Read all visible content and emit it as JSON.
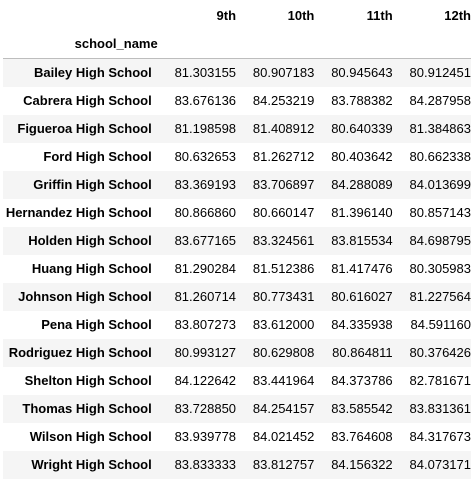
{
  "table": {
    "columns": [
      "9th",
      "10th",
      "11th",
      "12th"
    ],
    "index_name": "school_name",
    "rows": [
      {
        "name": "Bailey High School",
        "values": [
          "81.303155",
          "80.907183",
          "80.945643",
          "80.912451"
        ]
      },
      {
        "name": "Cabrera High School",
        "values": [
          "83.676136",
          "84.253219",
          "83.788382",
          "84.287958"
        ]
      },
      {
        "name": "Figueroa High School",
        "values": [
          "81.198598",
          "81.408912",
          "80.640339",
          "81.384863"
        ]
      },
      {
        "name": "Ford High School",
        "values": [
          "80.632653",
          "81.262712",
          "80.403642",
          "80.662338"
        ]
      },
      {
        "name": "Griffin High School",
        "values": [
          "83.369193",
          "83.706897",
          "84.288089",
          "84.013699"
        ]
      },
      {
        "name": "Hernandez High School",
        "values": [
          "80.866860",
          "80.660147",
          "81.396140",
          "80.857143"
        ]
      },
      {
        "name": "Holden High School",
        "values": [
          "83.677165",
          "83.324561",
          "83.815534",
          "84.698795"
        ]
      },
      {
        "name": "Huang High School",
        "values": [
          "81.290284",
          "81.512386",
          "81.417476",
          "80.305983"
        ]
      },
      {
        "name": "Johnson High School",
        "values": [
          "81.260714",
          "80.773431",
          "80.616027",
          "81.227564"
        ]
      },
      {
        "name": "Pena High School",
        "values": [
          "83.807273",
          "83.612000",
          "84.335938",
          "84.591160"
        ]
      },
      {
        "name": "Rodriguez High School",
        "values": [
          "80.993127",
          "80.629808",
          "80.864811",
          "80.376426"
        ]
      },
      {
        "name": "Shelton High School",
        "values": [
          "84.122642",
          "83.441964",
          "84.373786",
          "82.781671"
        ]
      },
      {
        "name": "Thomas High School",
        "values": [
          "83.728850",
          "84.254157",
          "83.585542",
          "83.831361"
        ]
      },
      {
        "name": "Wilson High School",
        "values": [
          "83.939778",
          "84.021452",
          "83.764608",
          "84.317673"
        ]
      },
      {
        "name": "Wright High School",
        "values": [
          "83.833333",
          "83.812757",
          "84.156322",
          "84.073171"
        ]
      }
    ]
  }
}
